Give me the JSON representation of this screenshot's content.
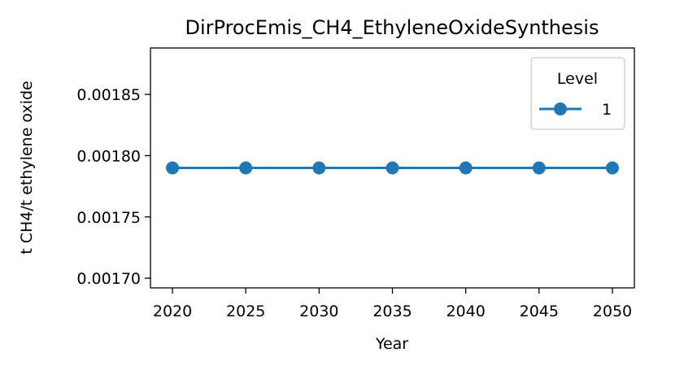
{
  "chart_data": {
    "type": "line",
    "title": "DirProcEmis_CH4_EthyleneOxideSynthesis",
    "xlabel": "Year",
    "ylabel": "t CH4/t ethylene oxide",
    "x": [
      2020,
      2025,
      2030,
      2035,
      2040,
      2045,
      2050
    ],
    "x_ticks": [
      "2020",
      "2025",
      "2030",
      "2035",
      "2040",
      "2045",
      "2050"
    ],
    "y_ticks": [
      "0.00170",
      "0.00175",
      "0.00180",
      "0.00185"
    ],
    "xlim": [
      2018.5,
      2051.5
    ],
    "ylim": [
      0.0016921,
      0.0018879
    ],
    "grid": false,
    "legend": {
      "title": "Level",
      "placement": "top-right"
    },
    "series": [
      {
        "name": "1",
        "color": "#1f77b4",
        "marker": "circle",
        "values": [
          0.00179,
          0.00179,
          0.00179,
          0.00179,
          0.00179,
          0.00179,
          0.00179
        ]
      }
    ]
  }
}
